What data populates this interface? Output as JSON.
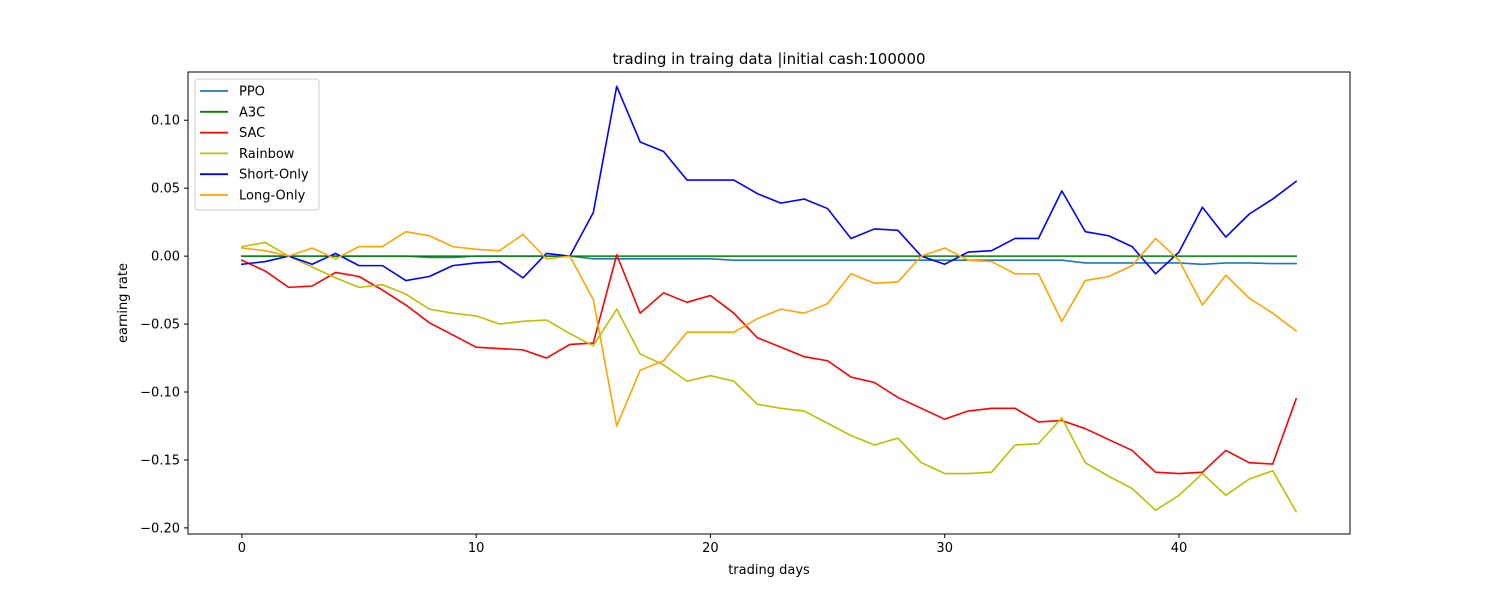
{
  "chart_data": {
    "type": "line",
    "title": "trading in traing data |initial cash:100000",
    "xlabel": "trading days",
    "ylabel": "earning rate",
    "xlim": [
      -2.3,
      47.3
    ],
    "ylim": [
      -0.2045,
      0.1355
    ],
    "x_ticks": [
      0,
      10,
      20,
      30,
      40
    ],
    "x_tick_labels": [
      "0",
      "10",
      "20",
      "30",
      "40"
    ],
    "y_ticks": [
      -0.2,
      -0.15,
      -0.1,
      -0.05,
      0.0,
      0.05,
      0.1
    ],
    "y_tick_labels": [
      "−0.20",
      "−0.15",
      "−0.10",
      "−0.05",
      "0.00",
      "0.05",
      "0.10"
    ],
    "grid": false,
    "legend_position": "upper-left",
    "x": [
      0,
      1,
      2,
      3,
      4,
      5,
      6,
      7,
      8,
      9,
      10,
      11,
      12,
      13,
      14,
      15,
      16,
      17,
      18,
      19,
      20,
      21,
      22,
      23,
      24,
      25,
      26,
      27,
      28,
      29,
      30,
      31,
      32,
      33,
      34,
      35,
      36,
      37,
      38,
      39,
      40,
      41,
      42,
      43,
      44,
      45
    ],
    "series": [
      {
        "name": "PPO",
        "color": "#1f77b4",
        "values": [
          0.0,
          0.0,
          0.0,
          0.0,
          0.0,
          0.0,
          0.0,
          0.0,
          -0.001,
          -0.001,
          0.0,
          0.0,
          0.0,
          0.0,
          0.0,
          -0.002,
          -0.002,
          -0.002,
          -0.002,
          -0.002,
          -0.002,
          -0.003,
          -0.003,
          -0.003,
          -0.003,
          -0.003,
          -0.003,
          -0.003,
          -0.003,
          -0.003,
          -0.003,
          -0.003,
          -0.003,
          -0.003,
          -0.003,
          -0.003,
          -0.005,
          -0.005,
          -0.005,
          -0.005,
          -0.005,
          -0.006,
          -0.005,
          -0.005,
          -0.0055,
          -0.0055
        ]
      },
      {
        "name": "A3C",
        "color": "#008000",
        "values": [
          0.0,
          0.0,
          0.0,
          0.0,
          0.0,
          0.0,
          0.0,
          0.0,
          0.0,
          0.0,
          0.0,
          0.0,
          0.0,
          0.0,
          0.0,
          0.0,
          0.0,
          0.0,
          0.0,
          0.0,
          0.0,
          0.0,
          0.0,
          0.0,
          0.0,
          0.0,
          0.0,
          0.0,
          0.0,
          0.0,
          0.0,
          0.0,
          0.0,
          0.0,
          0.0,
          0.0,
          0.0,
          0.0,
          0.0,
          0.0,
          0.0,
          0.0,
          0.0,
          0.0,
          0.0,
          0.0
        ]
      },
      {
        "name": "SAC",
        "color": "#ff0000",
        "values": [
          -0.003,
          -0.011,
          -0.023,
          -0.022,
          -0.012,
          -0.015,
          -0.025,
          -0.036,
          -0.049,
          -0.058,
          -0.067,
          -0.068,
          -0.069,
          -0.075,
          -0.065,
          -0.064,
          0.001,
          -0.042,
          -0.027,
          -0.034,
          -0.029,
          -0.042,
          -0.06,
          -0.067,
          -0.074,
          -0.077,
          -0.089,
          -0.093,
          -0.104,
          -0.112,
          -0.12,
          -0.114,
          -0.112,
          -0.112,
          -0.122,
          -0.121,
          -0.127,
          -0.135,
          -0.143,
          -0.159,
          -0.16,
          -0.159,
          -0.143,
          -0.152,
          -0.153,
          -0.105
        ]
      },
      {
        "name": "Rainbow",
        "color": "#bfbf00",
        "values": [
          0.007,
          0.01,
          0.0,
          -0.008,
          -0.016,
          -0.023,
          -0.021,
          -0.028,
          -0.039,
          -0.042,
          -0.044,
          -0.05,
          -0.048,
          -0.047,
          -0.057,
          -0.066,
          -0.039,
          -0.072,
          -0.08,
          -0.092,
          -0.088,
          -0.092,
          -0.109,
          -0.112,
          -0.114,
          -0.123,
          -0.132,
          -0.139,
          -0.134,
          -0.152,
          -0.16,
          -0.16,
          -0.159,
          -0.139,
          -0.138,
          -0.119,
          -0.152,
          -0.162,
          -0.171,
          -0.187,
          -0.176,
          -0.16,
          -0.176,
          -0.164,
          -0.158,
          -0.188
        ]
      },
      {
        "name": "Short-Only",
        "color": "#0000ff",
        "values": [
          -0.006,
          -0.004,
          0.0,
          -0.006,
          0.002,
          -0.007,
          -0.007,
          -0.018,
          -0.015,
          -0.007,
          -0.005,
          -0.004,
          -0.016,
          0.002,
          0.0,
          0.032,
          0.125,
          0.084,
          0.077,
          0.056,
          0.056,
          0.056,
          0.046,
          0.039,
          0.042,
          0.035,
          0.013,
          0.02,
          0.019,
          0.0,
          -0.006,
          0.003,
          0.004,
          0.013,
          0.013,
          0.048,
          0.018,
          0.015,
          0.007,
          -0.013,
          0.003,
          0.036,
          0.014,
          0.031,
          0.042,
          0.055
        ]
      },
      {
        "name": "Long-Only",
        "color": "#ffa500",
        "values": [
          0.006,
          0.004,
          0.0,
          0.006,
          -0.002,
          0.007,
          0.007,
          0.018,
          0.015,
          0.007,
          0.005,
          0.004,
          0.016,
          -0.002,
          0.0,
          -0.032,
          -0.125,
          -0.084,
          -0.077,
          -0.056,
          -0.056,
          -0.056,
          -0.046,
          -0.039,
          -0.042,
          -0.035,
          -0.013,
          -0.02,
          -0.019,
          0.0,
          0.006,
          -0.003,
          -0.004,
          -0.013,
          -0.013,
          -0.048,
          -0.018,
          -0.015,
          -0.007,
          0.013,
          -0.003,
          -0.036,
          -0.014,
          -0.031,
          -0.042,
          -0.055
        ]
      }
    ]
  }
}
